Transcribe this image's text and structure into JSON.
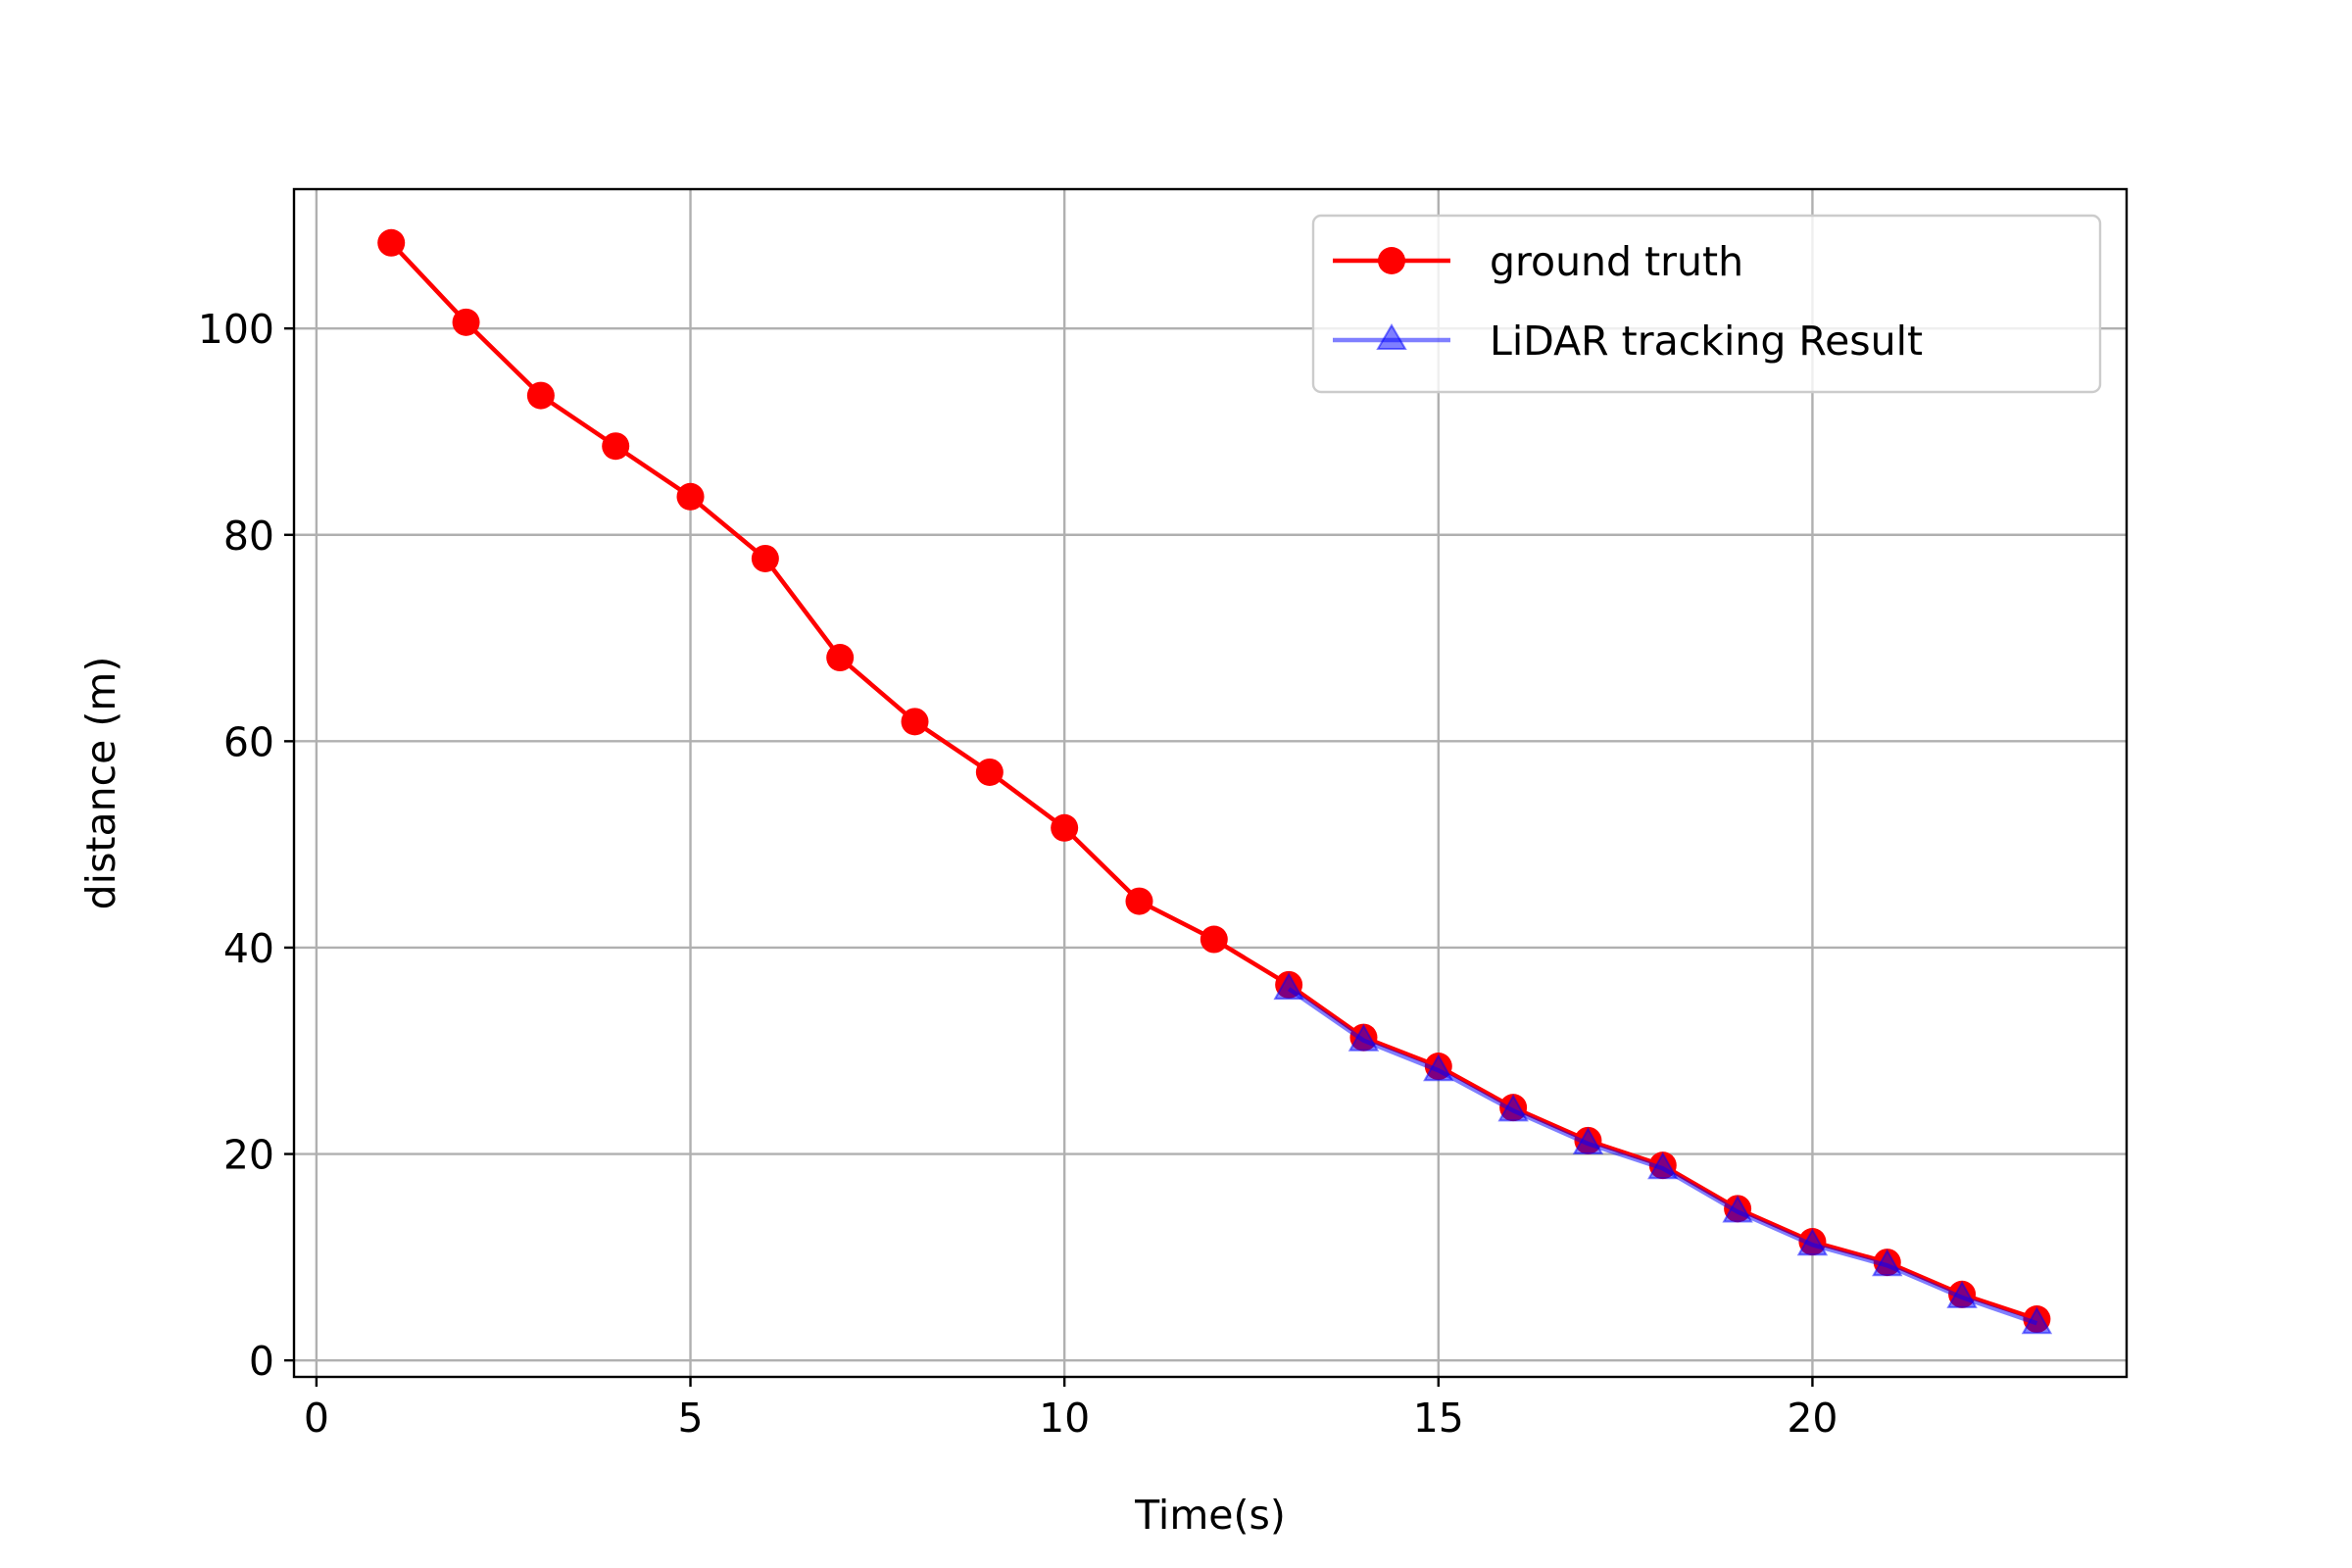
{
  "chart_data": {
    "type": "line",
    "title": "",
    "xlabel": "Time(s)",
    "ylabel": "distance (m)",
    "xlim": [
      -0.3,
      24.2
    ],
    "ylim": [
      -1.6,
      113.5
    ],
    "xticks": [
      0,
      5,
      10,
      15,
      20
    ],
    "yticks": [
      0,
      20,
      40,
      60,
      80,
      100
    ],
    "grid": true,
    "legend_position": "top-right",
    "series": [
      {
        "name": "ground truth",
        "color": "#ff0000",
        "marker": "circle",
        "x": [
          1,
          2,
          3,
          4,
          5,
          6,
          7,
          8,
          9,
          10,
          11,
          12,
          13,
          14,
          15,
          16,
          17,
          18,
          19,
          20,
          21,
          22,
          23
        ],
        "y": [
          108.3,
          100.6,
          93.5,
          88.6,
          83.7,
          77.7,
          68.1,
          61.9,
          57.0,
          51.6,
          44.5,
          40.8,
          36.4,
          31.3,
          28.5,
          24.5,
          21.3,
          18.9,
          14.7,
          11.5,
          9.5,
          6.4,
          4.0
        ]
      },
      {
        "name": "LiDAR tracking Result",
        "color": "#0000ff",
        "opacity": 0.5,
        "marker": "triangle",
        "x": [
          13,
          14,
          15,
          16,
          17,
          18,
          19,
          20,
          21,
          22,
          23
        ],
        "y": [
          36.0,
          31.0,
          28.1,
          24.2,
          21.0,
          18.6,
          14.4,
          11.2,
          9.2,
          6.1,
          3.6
        ]
      }
    ]
  }
}
